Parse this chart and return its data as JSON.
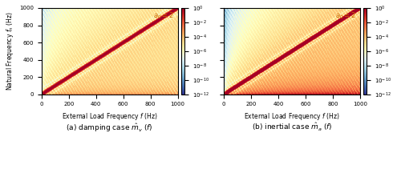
{
  "fmin": 0,
  "fmax": 1000,
  "N": 500,
  "a0": 2,
  "vmin": 1e-12,
  "vmax": 1.0,
  "colormap": "RdYlBu_r",
  "title_annotation": "$a_0 = 2$",
  "xlabel": "External Load Frequency $f$ (Hz)",
  "ylabel": "Natural Frequency $f_n$ (Hz)",
  "xticks": [
    0,
    200,
    400,
    600,
    800,
    1000
  ],
  "yticks": [
    0,
    200,
    400,
    600,
    800,
    1000
  ],
  "xlim": [
    0,
    1000
  ],
  "ylim": [
    0,
    1000
  ],
  "label_a": "(a) damping case $\\hat{m}_v$ ($f$)",
  "label_b": "(b) inertial case $\\hat{m}_a$ ($f$)",
  "figsize": [
    5.0,
    2.11
  ],
  "dpi": 100,
  "colorbar_ticks": [
    1.0,
    0.01,
    0.0001,
    1e-06,
    1e-08,
    1e-10,
    1e-12
  ],
  "window_bandwidth": 100,
  "annotation_color": "#cc6600"
}
